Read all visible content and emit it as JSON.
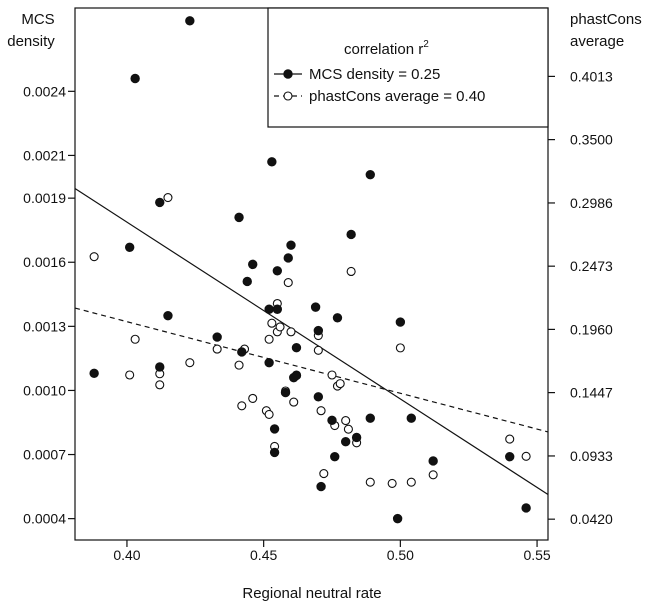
{
  "chart_data": {
    "type": "scatter",
    "xlabel": "Regional neutral rate",
    "ylabel_left": [
      "MCS",
      "density"
    ],
    "ylabel_right": [
      "phastCons",
      "average"
    ],
    "xlim": [
      0.381,
      0.554
    ],
    "ylim_left": [
      0.0003,
      0.00279
    ],
    "ylim_right": [
      0.0251,
      0.4568
    ],
    "x_ticks": [
      0.4,
      0.45,
      0.5,
      0.55
    ],
    "x_tick_labels": [
      "0.40",
      "0.45",
      "0.50",
      "0.55"
    ],
    "y_ticks_left": [
      0.0004,
      0.0007,
      0.001,
      0.0013,
      0.0016,
      0.0019,
      0.0021,
      0.0024
    ],
    "y_tick_labels_left": [
      "0.0004",
      "0.0007",
      "0.0010",
      "0.0013",
      "0.0016",
      "0.0019",
      "0.0021",
      "0.0024"
    ],
    "y_ticks_right": [
      0.042,
      0.0933,
      0.1447,
      0.196,
      0.2473,
      0.2986,
      0.35,
      0.4013
    ],
    "y_tick_labels_right": [
      "0.0420",
      "0.0933",
      "0.1447",
      "0.1960",
      "0.2473",
      "0.2986",
      "0.3500",
      "0.4013"
    ],
    "grid": false,
    "legend": {
      "placement": "top-right",
      "title": "correlation r",
      "title_superscript": "2",
      "entries": [
        "MCS density = 0.25",
        "phastCons average = 0.40"
      ]
    },
    "series": [
      {
        "name": "MCS density = 0.25",
        "marker": "filled-circle",
        "axis": "left",
        "trend": [
          [
            0.381,
            0.001945
          ],
          [
            0.554,
            0.000513
          ]
        ],
        "points": [
          [
            0.388,
            0.00108
          ],
          [
            0.403,
            0.00246
          ],
          [
            0.401,
            0.00167
          ],
          [
            0.412,
            0.00188
          ],
          [
            0.412,
            0.00111
          ],
          [
            0.415,
            0.00135
          ],
          [
            0.423,
            0.00273
          ],
          [
            0.433,
            0.00125
          ],
          [
            0.441,
            0.00181
          ],
          [
            0.442,
            0.00118
          ],
          [
            0.444,
            0.00151
          ],
          [
            0.446,
            0.00159
          ],
          [
            0.452,
            0.00113
          ],
          [
            0.452,
            0.00138
          ],
          [
            0.453,
            0.00207
          ],
          [
            0.454,
            0.00082
          ],
          [
            0.454,
            0.00071
          ],
          [
            0.455,
            0.00156
          ],
          [
            0.455,
            0.00138
          ],
          [
            0.458,
            0.00099
          ],
          [
            0.459,
            0.00162
          ],
          [
            0.46,
            0.00168
          ],
          [
            0.461,
            0.00106
          ],
          [
            0.462,
            0.0012
          ],
          [
            0.462,
            0.00107
          ],
          [
            0.469,
            0.00139
          ],
          [
            0.47,
            0.00128
          ],
          [
            0.47,
            0.00097
          ],
          [
            0.471,
            0.00055
          ],
          [
            0.475,
            0.00086
          ],
          [
            0.476,
            0.00069
          ],
          [
            0.477,
            0.00134
          ],
          [
            0.48,
            0.00076
          ],
          [
            0.482,
            0.00173
          ],
          [
            0.484,
            0.00078
          ],
          [
            0.489,
            0.00201
          ],
          [
            0.489,
            0.00087
          ],
          [
            0.499,
            0.0004
          ],
          [
            0.5,
            0.00132
          ],
          [
            0.504,
            0.00087
          ],
          [
            0.512,
            0.00067
          ],
          [
            0.54,
            0.00069
          ],
          [
            0.546,
            0.00045
          ]
        ]
      },
      {
        "name": "phastCons average = 0.40",
        "marker": "open-circle",
        "axis": "right",
        "trend": [
          [
            0.381,
            0.2133
          ],
          [
            0.554,
            0.1128
          ]
        ],
        "points": [
          [
            0.388,
            0.255
          ],
          [
            0.401,
            0.159
          ],
          [
            0.403,
            0.188
          ],
          [
            0.412,
            0.16
          ],
          [
            0.412,
            0.151
          ],
          [
            0.415,
            0.303
          ],
          [
            0.423,
            0.169
          ],
          [
            0.433,
            0.18
          ],
          [
            0.441,
            0.167
          ],
          [
            0.442,
            0.134
          ],
          [
            0.443,
            0.18
          ],
          [
            0.446,
            0.14
          ],
          [
            0.451,
            0.13
          ],
          [
            0.452,
            0.127
          ],
          [
            0.452,
            0.188
          ],
          [
            0.453,
            0.201
          ],
          [
            0.454,
            0.101
          ],
          [
            0.455,
            0.217
          ],
          [
            0.455,
            0.194
          ],
          [
            0.456,
            0.198
          ],
          [
            0.458,
            0.146
          ],
          [
            0.459,
            0.234
          ],
          [
            0.46,
            0.194
          ],
          [
            0.461,
            0.137
          ],
          [
            0.462,
            0.159
          ],
          [
            0.47,
            0.191
          ],
          [
            0.47,
            0.179
          ],
          [
            0.471,
            0.13
          ],
          [
            0.472,
            0.079
          ],
          [
            0.475,
            0.159
          ],
          [
            0.476,
            0.118
          ],
          [
            0.477,
            0.15
          ],
          [
            0.478,
            0.152
          ],
          [
            0.48,
            0.122
          ],
          [
            0.481,
            0.115
          ],
          [
            0.482,
            0.243
          ],
          [
            0.484,
            0.104
          ],
          [
            0.489,
            0.072
          ],
          [
            0.497,
            0.071
          ],
          [
            0.5,
            0.181
          ],
          [
            0.504,
            0.072
          ],
          [
            0.512,
            0.078
          ],
          [
            0.54,
            0.107
          ],
          [
            0.546,
            0.093
          ]
        ]
      }
    ]
  }
}
